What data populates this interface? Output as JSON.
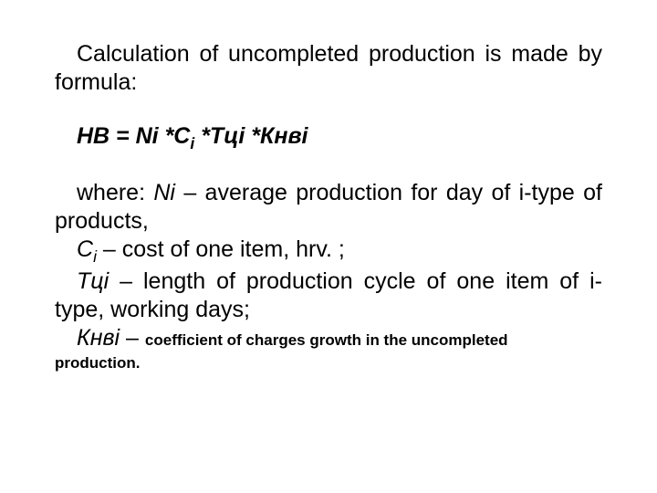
{
  "intro": "Calculation of uncompleted production is made by formula:",
  "formula": {
    "lhs": "НВ",
    "eq": " = ",
    "t1": "Ni ",
    "star": "*",
    "t2a": "С",
    "t2sub": "і",
    "sp": " ",
    "t3": "Тці ",
    "t4": "Кнві"
  },
  "defs": {
    "wherePrefix": "where: ",
    "ni": "Ni",
    "niText": " – average production for day of і-type of products,",
    "ci": "С",
    "ciSub": "і",
    "ciText": " – cost of one item, hrv. ;",
    "tci": "Тці",
    "tciText": " – length of production cycle of one item of і-type, working days;",
    "knvi": "Кнві",
    "dash": " – ",
    "knviText": "coefficient of charges growth in the uncompleted",
    "knviTail": "production."
  },
  "colors": {
    "text": "#000000",
    "background": "#ffffff"
  },
  "fonts": {
    "body_pt": 19,
    "small_pt": 13
  }
}
